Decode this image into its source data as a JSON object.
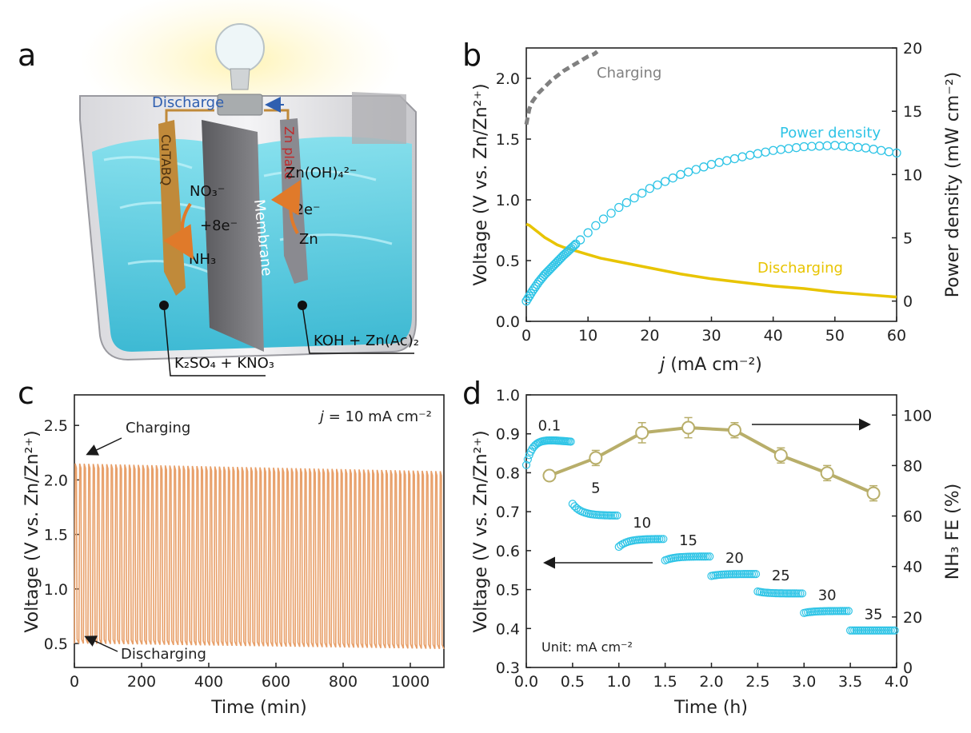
{
  "panel_labels": [
    "a",
    "b",
    "c",
    "d"
  ],
  "colors": {
    "charge": "#808080",
    "power": "#2ec4e6",
    "discharge": "#e8c400",
    "cycle": "#e8a06a",
    "fe": "#b8ae6a",
    "arrow": "#1a1a1a",
    "water": "#63d3e6"
  },
  "schematic": {
    "discharge_label": "Discharge",
    "cathode_label": "CuTABQ",
    "anode_label": "Zn plate",
    "membrane_label": "Membrane",
    "no3": "NO₃⁻",
    "plus8e": "+8e⁻",
    "nh3": "NH₃",
    "znoh4": "Zn(OH)₄²⁻",
    "minus2e": "-2e⁻",
    "zn": "Zn",
    "left_electrolyte": "K₂SO₄ + KNO₃",
    "right_electrolyte": "KOH + Zn(Ac)₂",
    "icons": [
      "light-bulb-icon",
      "arrow-icon"
    ]
  },
  "chart_data": [
    {
      "panel": "b",
      "type": "line",
      "xlabel_italic": "j",
      "xlabel": " (mA cm⁻²)",
      "ylabel": "Voltage (V vs. Zn/Zn²⁺)",
      "y2label": "Power density (mW cm⁻²)",
      "xlim": [
        0,
        60
      ],
      "ylim": [
        0,
        2.25
      ],
      "y2lim": [
        -1.6,
        20
      ],
      "xticks": [
        0,
        10,
        20,
        30,
        40,
        50,
        60
      ],
      "yticks": [
        0.0,
        0.5,
        1.0,
        1.5,
        2.0
      ],
      "y2ticks": [
        0,
        5,
        10,
        15,
        20
      ],
      "annotations": {
        "charging": "Charging",
        "power": "Power density",
        "discharging": "Discharging"
      },
      "series": [
        {
          "name": "Charging",
          "style": "dashed",
          "axis": "left",
          "x": [
            0,
            0.5,
            1,
            2,
            3,
            4,
            5,
            6,
            7,
            8,
            9,
            10,
            11,
            11.5
          ],
          "y": [
            1.62,
            1.75,
            1.81,
            1.88,
            1.93,
            1.98,
            2.02,
            2.06,
            2.09,
            2.12,
            2.15,
            2.18,
            2.2,
            2.22
          ]
        },
        {
          "name": "Discharging",
          "style": "solid",
          "axis": "left",
          "x": [
            0,
            0.5,
            1,
            2,
            3,
            4,
            5,
            6,
            8,
            10,
            12,
            15,
            20,
            25,
            30,
            35,
            40,
            45,
            50,
            55,
            60
          ],
          "y": [
            0.8,
            0.79,
            0.77,
            0.73,
            0.69,
            0.66,
            0.63,
            0.61,
            0.58,
            0.55,
            0.52,
            0.49,
            0.44,
            0.39,
            0.35,
            0.32,
            0.29,
            0.27,
            0.24,
            0.22,
            0.2
          ]
        },
        {
          "name": "Power density",
          "style": "markers",
          "axis": "right",
          "x": [
            0,
            0.5,
            1,
            2,
            3,
            4,
            5,
            6,
            8,
            10,
            12,
            15,
            20,
            25,
            30,
            35,
            40,
            45,
            50,
            55,
            60
          ],
          "y": [
            0,
            0.4,
            0.8,
            1.5,
            2.1,
            2.6,
            3.1,
            3.6,
            4.5,
            5.4,
            6.3,
            7.4,
            8.9,
            10.0,
            10.8,
            11.4,
            11.9,
            12.2,
            12.3,
            12.1,
            11.7
          ]
        }
      ]
    },
    {
      "panel": "c",
      "type": "line",
      "xlabel": "Time (min)",
      "ylabel": "Voltage (V vs. Zn/Zn²⁺)",
      "xlim": [
        0,
        1100
      ],
      "ylim": [
        0.28,
        2.78
      ],
      "xticks": [
        0,
        200,
        400,
        600,
        800,
        1000
      ],
      "yticks": [
        0.5,
        1.0,
        1.5,
        2.0,
        2.5
      ],
      "condition_italic": "j",
      "condition": " = 10 mA cm⁻²",
      "annotations": {
        "charging": "Charging",
        "discharging": "Discharging"
      },
      "cycles": 82,
      "charge_voltage_range": [
        2.15,
        2.08
      ],
      "discharge_voltage_range": [
        0.5,
        0.45
      ]
    },
    {
      "panel": "d",
      "type": "scatter",
      "xlabel": "Time (h)",
      "ylabel": "Voltage (V vs. Zn/Zn²⁺)",
      "y2label": "NH₃ FE (%)",
      "xlim": [
        0,
        4
      ],
      "ylim": [
        0.3,
        1.0
      ],
      "y2lim": [
        0,
        108
      ],
      "xticks": [
        0.0,
        0.5,
        1.0,
        1.5,
        2.0,
        2.5,
        3.0,
        3.5,
        4.0
      ],
      "yticks": [
        0.3,
        0.4,
        0.5,
        0.6,
        0.7,
        0.8,
        0.9,
        1.0
      ],
      "y2ticks": [
        0,
        20,
        40,
        60,
        80,
        100
      ],
      "unit_note": "Unit: mA cm⁻²",
      "voltage_segments": [
        {
          "label": "0.1",
          "t0": 0.0,
          "t1": 0.5,
          "v_start": 0.82,
          "v_end": 0.88,
          "peak": 0.89
        },
        {
          "label": "5",
          "t0": 0.5,
          "t1": 1.0,
          "v_start": 0.72,
          "v_end": 0.69
        },
        {
          "label": "10",
          "t0": 1.0,
          "t1": 1.5,
          "v_start": 0.61,
          "v_end": 0.63
        },
        {
          "label": "15",
          "t0": 1.5,
          "t1": 2.0,
          "v_start": 0.575,
          "v_end": 0.585
        },
        {
          "label": "20",
          "t0": 2.0,
          "t1": 2.5,
          "v_start": 0.535,
          "v_end": 0.54
        },
        {
          "label": "25",
          "t0": 2.5,
          "t1": 3.0,
          "v_start": 0.495,
          "v_end": 0.49
        },
        {
          "label": "30",
          "t0": 3.0,
          "t1": 3.5,
          "v_start": 0.44,
          "v_end": 0.445
        },
        {
          "label": "35",
          "t0": 3.5,
          "t1": 4.0,
          "v_start": 0.395,
          "v_end": 0.395
        }
      ],
      "fe_series": {
        "name": "NH₃ FE",
        "x": [
          0.25,
          0.75,
          1.25,
          1.75,
          2.25,
          2.75,
          3.25,
          3.75
        ],
        "y": [
          76,
          83,
          93,
          95,
          94,
          84,
          77,
          69
        ],
        "err": [
          2,
          3,
          4,
          4,
          3,
          3,
          3,
          3
        ]
      }
    }
  ]
}
